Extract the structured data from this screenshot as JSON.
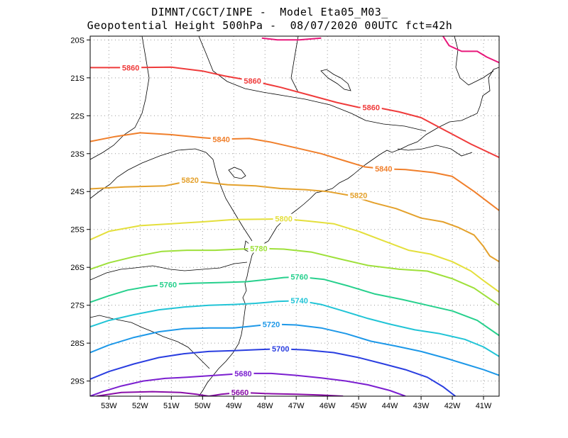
{
  "chart_data": {
    "type": "map-contour",
    "title_line1": "DIMNT/CGCT/INPE -  Model Eta05_M03_",
    "title_line2": "Geopotential Height 500hPa -  08/07/2020 00UTC fct=42h",
    "xlim": [
      -53.6,
      -40.5
    ],
    "ylim": [
      -29.4,
      -19.9
    ],
    "x_ticks": [
      {
        "v": -53,
        "label": "53W"
      },
      {
        "v": -52,
        "label": "52W"
      },
      {
        "v": -51,
        "label": "51W"
      },
      {
        "v": -50,
        "label": "50W"
      },
      {
        "v": -49,
        "label": "49W"
      },
      {
        "v": -48,
        "label": "48W"
      },
      {
        "v": -47,
        "label": "47W"
      },
      {
        "v": -46,
        "label": "46W"
      },
      {
        "v": -45,
        "label": "45W"
      },
      {
        "v": -44,
        "label": "44W"
      },
      {
        "v": -43,
        "label": "43W"
      },
      {
        "v": -42,
        "label": "42W"
      },
      {
        "v": -41,
        "label": "41W"
      }
    ],
    "y_ticks": [
      {
        "v": -20,
        "label": "20S"
      },
      {
        "v": -21,
        "label": "21S"
      },
      {
        "v": -22,
        "label": "22S"
      },
      {
        "v": -23,
        "label": "23S"
      },
      {
        "v": -24,
        "label": "24S"
      },
      {
        "v": -25,
        "label": "25S"
      },
      {
        "v": -26,
        "label": "26S"
      },
      {
        "v": -27,
        "label": "27S"
      },
      {
        "v": -28,
        "label": "28S"
      },
      {
        "v": -29,
        "label": "29S"
      }
    ],
    "grid": "dotted",
    "contours": [
      {
        "level": "5880",
        "color": "#e8177a",
        "labels": [],
        "points": [
          [
            -48.1,
            -19.95
          ],
          [
            -47.6,
            -20.0
          ],
          [
            -46.9,
            -20.0
          ],
          [
            -46.2,
            -19.95
          ]
        ]
      },
      {
        "level": "5880",
        "color": "#e8177a",
        "labels": [],
        "points": [
          [
            -42.3,
            -19.9
          ],
          [
            -42.1,
            -20.15
          ],
          [
            -41.7,
            -20.3
          ],
          [
            -41.2,
            -20.3
          ],
          [
            -40.9,
            -20.45
          ],
          [
            -40.5,
            -20.6
          ]
        ]
      },
      {
        "level": "5860",
        "color": "#ef3b3b",
        "labels": [
          {
            "text": "5860",
            "x": -52.3,
            "y": -20.73
          },
          {
            "text": "5860",
            "x": -48.4,
            "y": -21.08
          },
          {
            "text": "5860",
            "x": -44.6,
            "y": -21.78
          }
        ],
        "points": [
          [
            -53.6,
            -20.73
          ],
          [
            -52.3,
            -20.73
          ],
          [
            -51.0,
            -20.72
          ],
          [
            -50.0,
            -20.82
          ],
          [
            -49.3,
            -20.95
          ],
          [
            -48.4,
            -21.08
          ],
          [
            -47.5,
            -21.25
          ],
          [
            -46.6,
            -21.45
          ],
          [
            -45.7,
            -21.65
          ],
          [
            -45.0,
            -21.78
          ],
          [
            -44.3,
            -21.8
          ],
          [
            -43.7,
            -21.9
          ],
          [
            -43.0,
            -22.05
          ],
          [
            -42.2,
            -22.4
          ],
          [
            -41.4,
            -22.75
          ],
          [
            -40.5,
            -23.1
          ]
        ]
      },
      {
        "level": "5840",
        "color": "#f07f2b",
        "labels": [
          {
            "text": "5840",
            "x": -49.4,
            "y": -22.62
          },
          {
            "text": "5840",
            "x": -44.2,
            "y": -23.4
          }
        ],
        "points": [
          [
            -53.6,
            -22.68
          ],
          [
            -52.8,
            -22.55
          ],
          [
            -52.0,
            -22.45
          ],
          [
            -51.0,
            -22.5
          ],
          [
            -50.0,
            -22.58
          ],
          [
            -49.4,
            -22.62
          ],
          [
            -48.5,
            -22.6
          ],
          [
            -47.8,
            -22.7
          ],
          [
            -47.0,
            -22.85
          ],
          [
            -46.2,
            -23.0
          ],
          [
            -45.4,
            -23.2
          ],
          [
            -44.8,
            -23.35
          ],
          [
            -44.2,
            -23.4
          ],
          [
            -43.5,
            -23.42
          ],
          [
            -42.6,
            -23.5
          ],
          [
            -42.0,
            -23.6
          ],
          [
            -41.3,
            -24.0
          ],
          [
            -40.9,
            -24.25
          ],
          [
            -40.5,
            -24.5
          ]
        ]
      },
      {
        "level": "5820",
        "color": "#e4a12c",
        "labels": [
          {
            "text": "5820",
            "x": -50.4,
            "y": -23.7
          },
          {
            "text": "5820",
            "x": -45.0,
            "y": -24.1
          }
        ],
        "points": [
          [
            -53.6,
            -23.93
          ],
          [
            -52.5,
            -23.88
          ],
          [
            -51.2,
            -23.85
          ],
          [
            -50.6,
            -23.75
          ],
          [
            -50.0,
            -23.75
          ],
          [
            -49.2,
            -23.82
          ],
          [
            -48.3,
            -23.85
          ],
          [
            -47.5,
            -23.92
          ],
          [
            -46.7,
            -23.95
          ],
          [
            -46.0,
            -24.0
          ],
          [
            -45.3,
            -24.1
          ],
          [
            -44.5,
            -24.3
          ],
          [
            -43.8,
            -24.45
          ],
          [
            -43.0,
            -24.7
          ],
          [
            -42.3,
            -24.8
          ],
          [
            -41.8,
            -24.95
          ],
          [
            -41.3,
            -25.15
          ],
          [
            -41.0,
            -25.45
          ],
          [
            -40.8,
            -25.7
          ],
          [
            -40.5,
            -25.85
          ]
        ]
      },
      {
        "level": "5800",
        "color": "#e4df3c",
        "labels": [
          {
            "text": "5800",
            "x": -47.4,
            "y": -24.72
          }
        ],
        "points": [
          [
            -53.6,
            -25.27
          ],
          [
            -53.0,
            -25.05
          ],
          [
            -52.0,
            -24.9
          ],
          [
            -51.0,
            -24.85
          ],
          [
            -50.0,
            -24.8
          ],
          [
            -49.0,
            -24.74
          ],
          [
            -48.0,
            -24.73
          ],
          [
            -47.4,
            -24.72
          ],
          [
            -46.6,
            -24.78
          ],
          [
            -45.8,
            -24.85
          ],
          [
            -45.0,
            -25.05
          ],
          [
            -44.2,
            -25.3
          ],
          [
            -43.4,
            -25.55
          ],
          [
            -42.7,
            -25.65
          ],
          [
            -42.0,
            -25.85
          ],
          [
            -41.4,
            -26.1
          ],
          [
            -41.0,
            -26.35
          ],
          [
            -40.5,
            -26.65
          ]
        ]
      },
      {
        "level": "5780",
        "color": "#9ee03a",
        "labels": [
          {
            "text": "5780",
            "x": -48.2,
            "y": -25.5
          }
        ],
        "points": [
          [
            -53.6,
            -26.05
          ],
          [
            -53.0,
            -25.88
          ],
          [
            -52.2,
            -25.72
          ],
          [
            -51.3,
            -25.58
          ],
          [
            -50.5,
            -25.55
          ],
          [
            -49.6,
            -25.55
          ],
          [
            -48.8,
            -25.52
          ],
          [
            -48.2,
            -25.5
          ],
          [
            -47.4,
            -25.52
          ],
          [
            -46.5,
            -25.6
          ],
          [
            -45.6,
            -25.78
          ],
          [
            -44.7,
            -25.95
          ],
          [
            -43.7,
            -26.05
          ],
          [
            -42.8,
            -26.1
          ],
          [
            -42.0,
            -26.3
          ],
          [
            -41.3,
            -26.55
          ],
          [
            -40.5,
            -27.0
          ]
        ]
      },
      {
        "level": "5760",
        "color": "#27d08d",
        "labels": [
          {
            "text": "5760",
            "x": -51.1,
            "y": -26.45
          },
          {
            "text": "5760",
            "x": -46.9,
            "y": -26.25
          }
        ],
        "points": [
          [
            -53.6,
            -26.92
          ],
          [
            -53.0,
            -26.75
          ],
          [
            -52.4,
            -26.6
          ],
          [
            -51.7,
            -26.5
          ],
          [
            -51.1,
            -26.45
          ],
          [
            -50.3,
            -26.42
          ],
          [
            -49.4,
            -26.4
          ],
          [
            -48.6,
            -26.38
          ],
          [
            -48.0,
            -26.33
          ],
          [
            -47.4,
            -26.27
          ],
          [
            -46.9,
            -26.25
          ],
          [
            -46.1,
            -26.32
          ],
          [
            -45.3,
            -26.5
          ],
          [
            -44.5,
            -26.7
          ],
          [
            -43.6,
            -26.85
          ],
          [
            -42.8,
            -27.0
          ],
          [
            -42.0,
            -27.15
          ],
          [
            -41.2,
            -27.4
          ],
          [
            -40.5,
            -27.8
          ]
        ]
      },
      {
        "level": "5740",
        "color": "#21c4d6",
        "labels": [
          {
            "text": "5740",
            "x": -46.9,
            "y": -26.88
          }
        ],
        "points": [
          [
            -53.6,
            -27.57
          ],
          [
            -53.0,
            -27.4
          ],
          [
            -52.2,
            -27.25
          ],
          [
            -51.4,
            -27.12
          ],
          [
            -50.6,
            -27.05
          ],
          [
            -49.8,
            -27.0
          ],
          [
            -49.0,
            -26.98
          ],
          [
            -48.3,
            -26.95
          ],
          [
            -47.6,
            -26.9
          ],
          [
            -46.9,
            -26.88
          ],
          [
            -46.2,
            -26.98
          ],
          [
            -45.5,
            -27.15
          ],
          [
            -44.7,
            -27.35
          ],
          [
            -44.0,
            -27.5
          ],
          [
            -43.2,
            -27.65
          ],
          [
            -42.4,
            -27.75
          ],
          [
            -41.6,
            -27.9
          ],
          [
            -41.0,
            -28.1
          ],
          [
            -40.5,
            -28.35
          ]
        ]
      },
      {
        "level": "5720",
        "color": "#1d98e8",
        "labels": [
          {
            "text": "5720",
            "x": -47.8,
            "y": -27.5
          }
        ],
        "points": [
          [
            -53.6,
            -28.25
          ],
          [
            -53.0,
            -28.05
          ],
          [
            -52.2,
            -27.85
          ],
          [
            -51.4,
            -27.7
          ],
          [
            -50.6,
            -27.62
          ],
          [
            -49.8,
            -27.6
          ],
          [
            -49.0,
            -27.6
          ],
          [
            -48.4,
            -27.55
          ],
          [
            -47.8,
            -27.5
          ],
          [
            -47.0,
            -27.52
          ],
          [
            -46.2,
            -27.6
          ],
          [
            -45.4,
            -27.75
          ],
          [
            -44.6,
            -27.95
          ],
          [
            -43.8,
            -28.08
          ],
          [
            -43.0,
            -28.22
          ],
          [
            -42.2,
            -28.4
          ],
          [
            -41.6,
            -28.55
          ],
          [
            -41.0,
            -28.7
          ],
          [
            -40.5,
            -28.85
          ]
        ]
      },
      {
        "level": "5700",
        "color": "#2a3ee0",
        "labels": [
          {
            "text": "5700",
            "x": -47.5,
            "y": -28.15
          }
        ],
        "points": [
          [
            -53.6,
            -28.95
          ],
          [
            -53.0,
            -28.75
          ],
          [
            -52.2,
            -28.55
          ],
          [
            -51.4,
            -28.38
          ],
          [
            -50.6,
            -28.28
          ],
          [
            -49.8,
            -28.22
          ],
          [
            -49.0,
            -28.2
          ],
          [
            -48.2,
            -28.17
          ],
          [
            -47.5,
            -28.15
          ],
          [
            -46.7,
            -28.18
          ],
          [
            -45.8,
            -28.25
          ],
          [
            -45.0,
            -28.38
          ],
          [
            -44.2,
            -28.55
          ],
          [
            -43.5,
            -28.7
          ],
          [
            -42.8,
            -28.9
          ],
          [
            -42.3,
            -29.15
          ],
          [
            -41.9,
            -29.4
          ]
        ]
      },
      {
        "level": "5680",
        "color": "#7b1fd0",
        "labels": [
          {
            "text": "5680",
            "x": -48.7,
            "y": -28.8
          }
        ],
        "points": [
          [
            -53.6,
            -29.4
          ],
          [
            -53.2,
            -29.28
          ],
          [
            -52.6,
            -29.13
          ],
          [
            -51.9,
            -29.0
          ],
          [
            -51.2,
            -28.93
          ],
          [
            -50.5,
            -28.9
          ],
          [
            -49.6,
            -28.85
          ],
          [
            -48.7,
            -28.8
          ],
          [
            -47.8,
            -28.8
          ],
          [
            -47.0,
            -28.85
          ],
          [
            -46.2,
            -28.92
          ],
          [
            -45.4,
            -29.0
          ],
          [
            -44.7,
            -29.1
          ],
          [
            -44.0,
            -29.25
          ],
          [
            -43.5,
            -29.4
          ]
        ]
      },
      {
        "level": "5660",
        "color": "#8a0fa8",
        "labels": [
          {
            "text": "5660",
            "x": -48.8,
            "y": -29.3
          }
        ],
        "points": [
          [
            -53.4,
            -29.4
          ],
          [
            -52.6,
            -29.3
          ],
          [
            -51.6,
            -29.28
          ],
          [
            -50.7,
            -29.3
          ],
          [
            -50.2,
            -29.35
          ],
          [
            -49.8,
            -29.4
          ],
          [
            -49.4,
            -29.35
          ],
          [
            -48.8,
            -29.3
          ],
          [
            -48.0,
            -29.33
          ],
          [
            -47.0,
            -29.35
          ],
          [
            -46.2,
            -29.37
          ],
          [
            -45.5,
            -29.4
          ]
        ]
      }
    ]
  }
}
